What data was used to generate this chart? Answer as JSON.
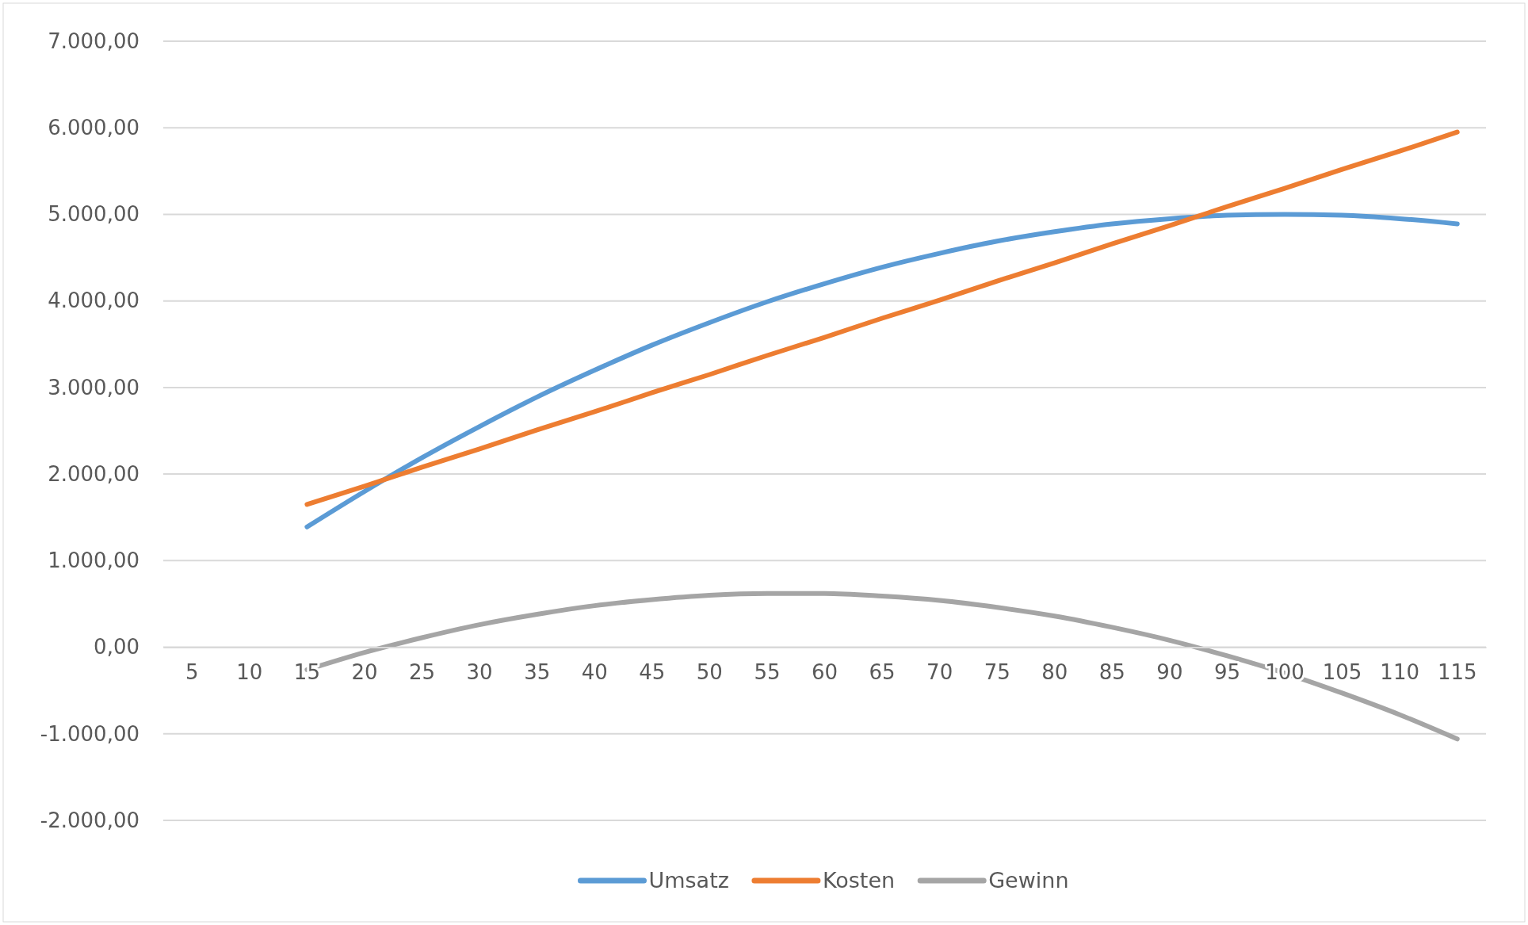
{
  "chart_data": {
    "type": "line",
    "categories": [
      "5",
      "10",
      "15",
      "20",
      "25",
      "30",
      "35",
      "40",
      "45",
      "50",
      "55",
      "60",
      "65",
      "70",
      "75",
      "80",
      "85",
      "90",
      "95",
      "100",
      "105",
      "110",
      "115"
    ],
    "series": [
      {
        "name": "Umsatz",
        "color": "#5b9bd5",
        "values": [
          null,
          null,
          1390,
          1800,
          2190,
          2550,
          2890,
          3200,
          3490,
          3750,
          3990,
          4200,
          4390,
          4550,
          4690,
          4800,
          4890,
          4950,
          4990,
          5000,
          4990,
          4950,
          4890
        ]
      },
      {
        "name": "Kosten",
        "color": "#ed7d31",
        "values": [
          null,
          null,
          1650,
          1860,
          2080,
          2290,
          2510,
          2720,
          2940,
          3150,
          3370,
          3580,
          3800,
          4010,
          4230,
          4440,
          4660,
          4870,
          5090,
          5300,
          5520,
          5730,
          5950
        ]
      },
      {
        "name": "Gewinn",
        "color": "#a5a5a5",
        "values": [
          null,
          null,
          -260,
          -60,
          110,
          260,
          380,
          480,
          550,
          600,
          620,
          620,
          590,
          540,
          460,
          360,
          230,
          80,
          -100,
          -300,
          -530,
          -780,
          -1060
        ]
      }
    ],
    "ylim": [
      -2000,
      7000
    ],
    "yticks": [
      {
        "value": -2000,
        "label": "-2.000,00"
      },
      {
        "value": -1000,
        "label": "-1.000,00"
      },
      {
        "value": 0,
        "label": "0,00"
      },
      {
        "value": 1000,
        "label": "1.000,00"
      },
      {
        "value": 2000,
        "label": "2.000,00"
      },
      {
        "value": 3000,
        "label": "3.000,00"
      },
      {
        "value": 4000,
        "label": "4.000,00"
      },
      {
        "value": 5000,
        "label": "5.000,00"
      },
      {
        "value": 6000,
        "label": "6.000,00"
      },
      {
        "value": 7000,
        "label": "7.000,00"
      }
    ],
    "grid": "y",
    "legend": "bottom"
  }
}
